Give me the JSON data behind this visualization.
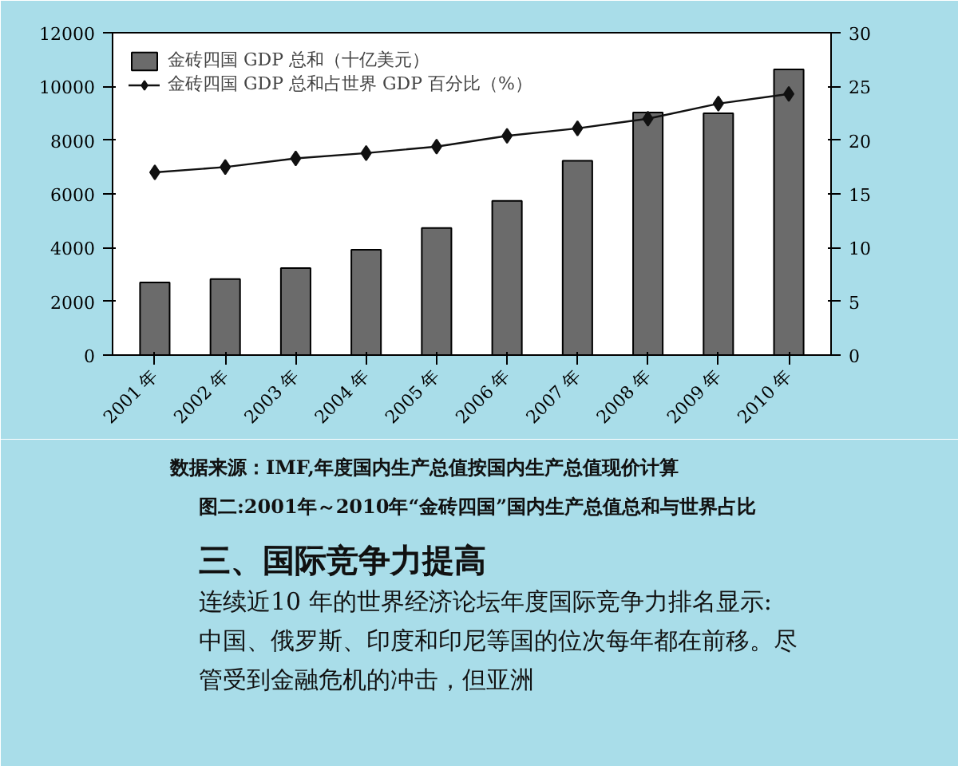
{
  "chart_data": {
    "type": "bar",
    "title": "图二:2001年～2010年“金砖四国”国内生产总值总和与世界占比",
    "categories": [
      "2001 年",
      "2002 年",
      "2003 年",
      "2004 年",
      "2005 年",
      "2006 年",
      "2007 年",
      "2008 年",
      "2009 年",
      "2010 年"
    ],
    "series": [
      {
        "name": "金砖四国 GDP 总和（十亿美元）",
        "color": "#6b6b6b",
        "values": [
          2700,
          2830,
          3240,
          3920,
          4730,
          5740,
          7230,
          9030,
          9000,
          10630
        ]
      },
      {
        "name": "金砖四国 GDP 总和占世界 GDP 百分比（%）",
        "type": "line",
        "axis": "y2",
        "color": "#111111",
        "marker": "diamond",
        "values": [
          17.0,
          17.5,
          18.3,
          18.8,
          19.4,
          20.4,
          21.1,
          22.0,
          23.4,
          24.3
        ]
      }
    ],
    "ylim": [
      0,
      12000
    ],
    "yticks": [
      0,
      2000,
      4000,
      6000,
      8000,
      10000,
      12000
    ],
    "y2lim": [
      0,
      30
    ],
    "y2ticks": [
      0,
      5,
      10,
      15,
      20,
      25,
      30
    ],
    "legend": "top left",
    "grid": false,
    "annotations": [
      "数据来源：IMF,年度国内生产总值按国内生产总值现价计算",
      "三、国际竞争力提高",
      "连续近10 年的世界经济论坛年度国际竞争力排名显示:",
      "中国、俄罗斯、印度和印尼等国的位次每年都在前移。尽",
      "管受到金融危机的冲击，但亚洲"
    ]
  }
}
